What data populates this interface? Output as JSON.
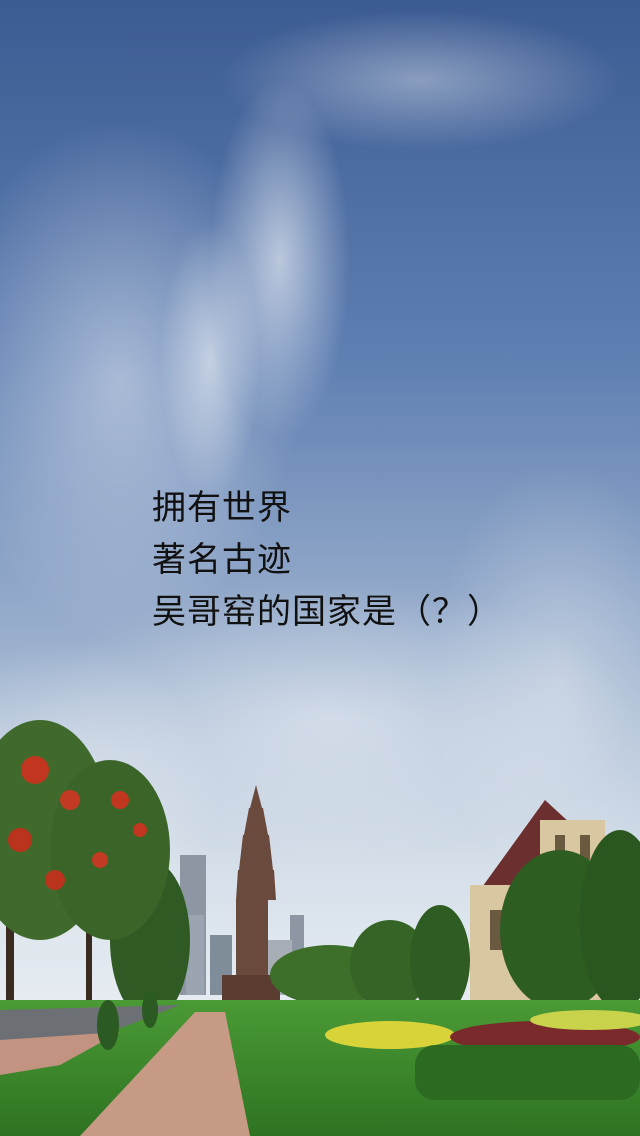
{
  "question": {
    "line1": "拥有世界",
    "line2": "著名古迹",
    "line3": "吴哥窑的国家是（？）"
  },
  "colors": {
    "sky_top": "#3f5f95",
    "sky_mid": "#6f8fc0",
    "sky_low": "#c9d6e6",
    "grass": "#3d8a2c",
    "grass_dark": "#2b6a1f",
    "path": "#c79a86",
    "tree_red": "#c0361f",
    "tower": "#6a4a3c",
    "text": "#111111"
  }
}
